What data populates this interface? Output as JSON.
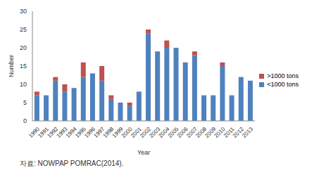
{
  "chart_data": {
    "type": "bar",
    "stacked": true,
    "x_label": "Year",
    "y_label": "Number",
    "source": "자료: NOWPAP POMRAC(2014).",
    "categories": [
      "1990",
      "1991",
      "1992",
      "1993",
      "1994",
      "1995",
      "1996",
      "1997",
      "1998",
      "1999",
      "2000",
      "2001",
      "2002",
      "2003",
      "2004",
      "2005",
      "2006",
      "2007",
      "2008",
      "2009",
      "2010",
      "2011",
      "2012",
      "2013"
    ],
    "series": [
      {
        "name": "<1000 tons",
        "color": "#4f81bd",
        "values": [
          7,
          7,
          11,
          8,
          9,
          12,
          13,
          11,
          6,
          5,
          4,
          8,
          24,
          19,
          20,
          20,
          16,
          18,
          7,
          7,
          15,
          7,
          12,
          11
        ]
      },
      {
        "name": ">1000 tons",
        "color": "#c0504d",
        "values": [
          1,
          0,
          1,
          2,
          0,
          4,
          0,
          4,
          1,
          0,
          1,
          0,
          1,
          0,
          2,
          0,
          0,
          1,
          0,
          0,
          1,
          0,
          0,
          0
        ]
      }
    ],
    "ylim": [
      0,
      30
    ],
    "yticks": [
      0,
      5,
      10,
      15,
      20,
      25,
      30
    ],
    "grid": false,
    "legend": "right"
  }
}
